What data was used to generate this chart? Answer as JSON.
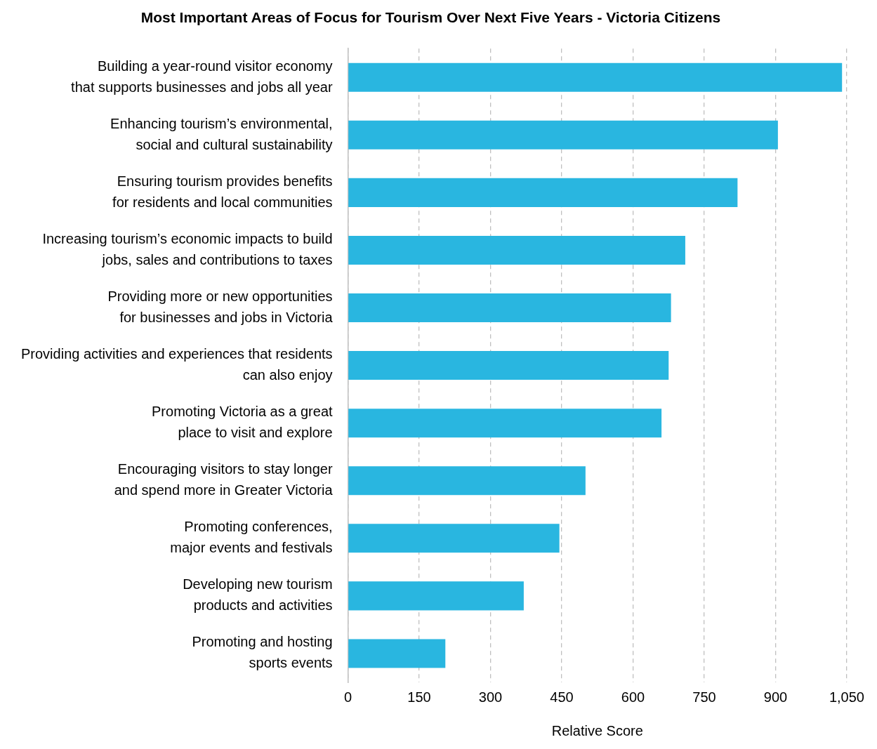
{
  "chart_data": {
    "type": "bar",
    "orientation": "horizontal",
    "title": "Most Important Areas of Focus for Tourism Over Next Five Years - Victoria Citizens",
    "xlabel": "Relative Score",
    "categories": [
      "Building a year-round visitor economy\nthat supports businesses and jobs all year",
      "Enhancing tourism’s environmental,\nsocial and cultural sustainability",
      "Ensuring tourism provides benefits\nfor residents and local communities",
      "Increasing tourism’s economic impacts to build\njobs, sales and contributions to taxes",
      "Providing more or new opportunities\nfor businesses and jobs in Victoria",
      "Providing activities and experiences that residents\ncan also enjoy",
      "Promoting Victoria as a great\nplace to visit and explore",
      "Encouraging visitors to stay longer\nand spend more in Greater Victoria",
      "Promoting conferences,\nmajor events and festivals",
      "Developing new tourism\nproducts and activities",
      "Promoting and hosting\nsports events"
    ],
    "values": [
      1040,
      905,
      820,
      710,
      680,
      675,
      660,
      500,
      445,
      370,
      205
    ],
    "color": "#29b6e0",
    "xlim": [
      0,
      1050
    ],
    "xticks": [
      0,
      150,
      300,
      450,
      600,
      750,
      900,
      {
        "value": 1050,
        "label": "1,050"
      }
    ],
    "grid": "x"
  }
}
